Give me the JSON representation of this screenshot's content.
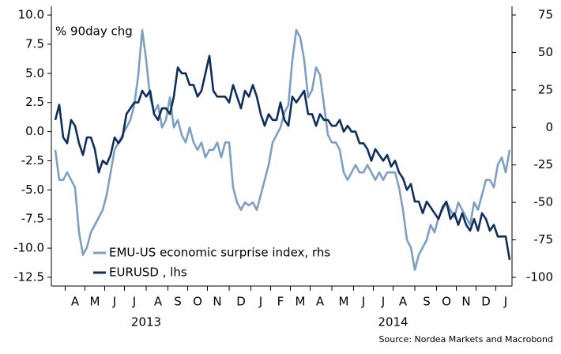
{
  "chart_data": {
    "type": "line",
    "annotation": "% 90day chg",
    "source": "Source: Nordea Markets and Macrobond",
    "categories": [
      null,
      null,
      null,
      null,
      null,
      "A",
      null,
      null,
      null,
      null,
      "M",
      null,
      null,
      null,
      null,
      "J",
      null,
      null,
      null,
      null,
      "J",
      null,
      null,
      null,
      null,
      null,
      "A",
      null,
      null,
      null,
      null,
      "S",
      null,
      null,
      null,
      null,
      "O",
      null,
      null,
      null,
      null,
      "N",
      null,
      null,
      null,
      null,
      null,
      "D",
      null,
      null,
      null,
      null,
      "J",
      null,
      null,
      null,
      null,
      "F",
      null,
      null,
      null,
      null,
      "M",
      null,
      null,
      null,
      null,
      "A",
      null,
      null,
      null,
      null,
      null,
      "M",
      null,
      null,
      null,
      null,
      "J",
      null,
      null,
      null,
      null,
      "J",
      null,
      null,
      null,
      null,
      "A",
      null,
      null,
      null,
      null,
      null,
      "S",
      null,
      null,
      null,
      null,
      "O",
      null,
      null,
      null,
      null,
      "N",
      null,
      null,
      null,
      null,
      "D",
      null,
      null,
      null,
      null,
      "J",
      null
    ],
    "year_labels": [
      "2013",
      "2014"
    ],
    "series": [
      {
        "name": "EMU-US economic surprise index, rhs",
        "color": "#7c9fc3",
        "axis": "y2",
        "values": [
          -15,
          -35,
          -35,
          -30,
          -35,
          -40,
          -70,
          -85,
          -80,
          -70,
          -65,
          -60,
          -55,
          -45,
          -30,
          -15,
          -10,
          -5,
          0,
          5,
          15,
          35,
          65,
          45,
          20,
          10,
          15,
          0,
          5,
          20,
          0,
          5,
          -5,
          -10,
          0,
          -10,
          -15,
          -10,
          -20,
          -15,
          -15,
          -10,
          -20,
          -10,
          -10,
          -40,
          -50,
          -55,
          -50,
          -52,
          -50,
          -55,
          -45,
          -35,
          -25,
          -10,
          -5,
          0,
          10,
          15,
          45,
          65,
          60,
          45,
          20,
          25,
          40,
          35,
          15,
          -5,
          -10,
          -10,
          -15,
          -30,
          -35,
          -30,
          -25,
          -30,
          -30,
          -25,
          -30,
          -35,
          -30,
          -35,
          -30,
          -30,
          -30,
          -40,
          -55,
          -75,
          -80,
          -95,
          -85,
          -80,
          -75,
          -65,
          -70,
          -60,
          -55,
          -50,
          -55,
          -60,
          -50,
          -55,
          -60,
          -65,
          -50,
          -55,
          -45,
          -35,
          -35,
          -40,
          -25,
          -20,
          -30,
          -15
        ]
      },
      {
        "name": "EURUSD , lhs",
        "color": "#0e2f5b",
        "values": [
          1.0,
          2.3,
          -0.5,
          -1,
          1.0,
          0.5,
          -1,
          -2,
          -0.5,
          -0.5,
          -1.5,
          -3.5,
          -2.5,
          -2.8,
          -2,
          -0.5,
          -1,
          -0.5,
          1.5,
          2,
          2.5,
          2.5,
          3.5,
          3,
          3.5,
          1.5,
          1,
          2,
          2,
          1.5,
          3,
          5.5,
          5,
          5,
          4,
          4,
          3,
          3.5,
          5,
          6.5,
          3.5,
          3,
          3,
          3,
          2.5,
          4,
          3,
          2,
          3.5,
          3,
          4,
          3,
          1.5,
          0.5,
          1.5,
          1,
          1,
          2.5,
          1,
          0.5,
          3,
          2.5,
          3,
          3.5,
          1.5,
          1.5,
          0.5,
          1.5,
          1,
          1,
          0.5,
          0.5,
          1,
          0,
          0.5,
          0,
          0,
          -1,
          -1,
          -1.5,
          -2.5,
          -1.5,
          -2,
          -2.5,
          -2,
          -3,
          -2.5,
          -3.5,
          -4,
          -5,
          -4.5,
          -6,
          -6,
          -7,
          -6,
          -6.5,
          -7,
          -7.5,
          -6.5,
          -6,
          -7.5,
          -7,
          -8,
          -7,
          -8,
          -8.5,
          -7.5,
          -8.5,
          -7,
          -7.5,
          -8.5,
          -8,
          -9,
          -9,
          -9,
          -11
        ]
      }
    ],
    "ylim": [
      -13.25,
      10.75
    ],
    "yticks": [
      {
        "value": 10,
        "label": "10.0"
      },
      7.5,
      {
        "value": 5,
        "label": "5.0"
      },
      2.5,
      {
        "value": 0,
        "label": "0.0"
      },
      -2.5,
      {
        "value": -5,
        "label": "-5.0"
      },
      -7.5,
      {
        "value": -10,
        "label": "-10.0"
      },
      -12.5
    ],
    "y2lim": [
      -105.8,
      80.8
    ],
    "y2ticks": [
      75,
      50,
      25,
      0,
      -25,
      -50,
      -75,
      -100
    ],
    "grid": false,
    "legend": "lower left"
  }
}
